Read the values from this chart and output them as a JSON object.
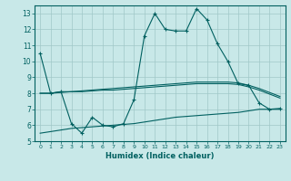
{
  "background_color": "#c8e8e8",
  "grid_color": "#a0c8c8",
  "line_color": "#006060",
  "xlabel": "Humidex (Indice chaleur)",
  "xlim": [
    -0.5,
    23.5
  ],
  "ylim": [
    5,
    13.5
  ],
  "yticks": [
    5,
    6,
    7,
    8,
    9,
    10,
    11,
    12,
    13
  ],
  "xticks": [
    0,
    1,
    2,
    3,
    4,
    5,
    6,
    7,
    8,
    9,
    10,
    11,
    12,
    13,
    14,
    15,
    16,
    17,
    18,
    19,
    20,
    21,
    22,
    23
  ],
  "line1_x": [
    0,
    1,
    2,
    3,
    4,
    5,
    6,
    7,
    8,
    9,
    10,
    11,
    12,
    13,
    14,
    15,
    16,
    17,
    18,
    19,
    20,
    21,
    22,
    23
  ],
  "line1_y": [
    10.5,
    8.0,
    8.1,
    6.1,
    5.5,
    6.5,
    6.0,
    5.9,
    6.1,
    7.6,
    11.6,
    13.0,
    12.0,
    11.9,
    11.9,
    13.3,
    12.6,
    11.1,
    10.0,
    8.6,
    8.5,
    7.4,
    7.0,
    7.05
  ],
  "line2_x": [
    0,
    1,
    2,
    3,
    4,
    5,
    6,
    7,
    8,
    9,
    10,
    11,
    12,
    13,
    14,
    15,
    16,
    17,
    18,
    19,
    20,
    21,
    22,
    23
  ],
  "line2_y": [
    8.0,
    8.0,
    8.1,
    8.1,
    8.15,
    8.2,
    8.25,
    8.3,
    8.35,
    8.4,
    8.45,
    8.5,
    8.55,
    8.6,
    8.65,
    8.7,
    8.7,
    8.7,
    8.7,
    8.65,
    8.5,
    8.3,
    8.05,
    7.8
  ],
  "line3_x": [
    0,
    1,
    2,
    3,
    4,
    5,
    6,
    7,
    8,
    9,
    10,
    11,
    12,
    13,
    14,
    15,
    16,
    17,
    18,
    19,
    20,
    21,
    22,
    23
  ],
  "line3_y": [
    8.0,
    8.0,
    8.05,
    8.1,
    8.1,
    8.15,
    8.2,
    8.2,
    8.25,
    8.3,
    8.35,
    8.4,
    8.45,
    8.5,
    8.55,
    8.6,
    8.6,
    8.6,
    8.6,
    8.55,
    8.4,
    8.2,
    7.95,
    7.7
  ],
  "line4_x": [
    0,
    1,
    2,
    3,
    4,
    5,
    6,
    7,
    8,
    9,
    10,
    11,
    12,
    13,
    14,
    15,
    16,
    17,
    18,
    19,
    20,
    21,
    22,
    23
  ],
  "line4_y": [
    5.5,
    5.6,
    5.7,
    5.8,
    5.85,
    5.9,
    5.95,
    6.0,
    6.05,
    6.1,
    6.2,
    6.3,
    6.4,
    6.5,
    6.55,
    6.6,
    6.65,
    6.7,
    6.75,
    6.8,
    6.9,
    7.0,
    7.0,
    7.0
  ]
}
